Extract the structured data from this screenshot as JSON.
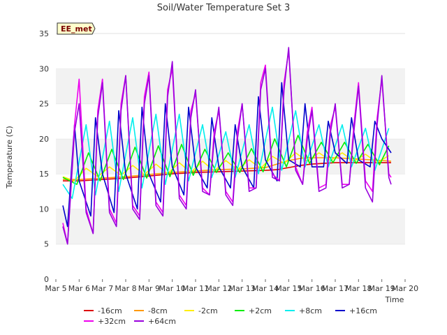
{
  "chart_data": {
    "type": "line",
    "title": "Soil/Water Temperature Set 3",
    "xlabel": "Time",
    "ylabel": "Temperature (C)",
    "badge": "EE_met",
    "xlim": [
      5,
      20
    ],
    "ylim": [
      0,
      35
    ],
    "x_ticks": [
      5,
      6,
      7,
      8,
      9,
      10,
      11,
      12,
      13,
      14,
      15,
      16,
      17,
      18,
      19,
      20
    ],
    "x_tick_labels": [
      "Mar 5",
      "Mar 6",
      "Mar 7",
      "Mar 8",
      "Mar 9",
      "Mar 10",
      "Mar 11",
      "Mar 12",
      "Mar 13",
      "Mar 14",
      "Mar 15",
      "Mar 16",
      "Mar 17",
      "Mar 18",
      "Mar 19",
      "Mar 20"
    ],
    "y_ticks": [
      0,
      5,
      10,
      15,
      20,
      25,
      30,
      35
    ],
    "y_tick_labels": [
      "0",
      "5",
      "10",
      "15",
      "20",
      "25",
      "30",
      "35"
    ],
    "grid": "horizontal bands",
    "legend_position": "bottom",
    "series": [
      {
        "name": "-16cm",
        "color": "#dd0000",
        "x": [
          5.3,
          6.0,
          7.0,
          8.0,
          9.0,
          10.0,
          11.0,
          12.0,
          13.0,
          14.0,
          14.5,
          15.0,
          15.5,
          16.0,
          17.0,
          18.0,
          19.0,
          19.4
        ],
        "y": [
          14.0,
          14.0,
          14.2,
          14.4,
          14.7,
          15.0,
          15.2,
          15.3,
          15.4,
          15.5,
          15.6,
          15.9,
          16.2,
          16.4,
          16.6,
          16.6,
          16.6,
          16.6
        ]
      },
      {
        "name": "-8cm",
        "color": "#ff9900",
        "x": [
          5.3,
          6.0,
          7.0,
          8.0,
          9.0,
          10.0,
          11.0,
          12.0,
          13.0,
          14.0,
          14.6,
          15.0,
          15.5,
          16.0,
          17.0,
          18.0,
          19.0,
          19.4
        ],
        "y": [
          14.2,
          14.2,
          14.4,
          14.6,
          14.9,
          15.2,
          15.4,
          15.6,
          15.7,
          15.9,
          16.5,
          16.9,
          17.2,
          17.3,
          17.3,
          17.1,
          16.9,
          16.8
        ]
      },
      {
        "name": "-2cm",
        "color": "#ffee00",
        "x": [
          5.3,
          5.8,
          6.3,
          6.8,
          7.3,
          7.8,
          8.3,
          8.8,
          9.3,
          9.8,
          10.3,
          10.8,
          11.3,
          11.8,
          12.3,
          12.8,
          13.3,
          13.8,
          14.3,
          14.8,
          15.3,
          15.8,
          16.3,
          16.8,
          17.3,
          17.8,
          18.3,
          18.8,
          19.3
        ],
        "y": [
          14.6,
          14.0,
          15.8,
          14.6,
          16.0,
          14.8,
          16.2,
          14.9,
          16.4,
          15.0,
          16.6,
          15.2,
          16.8,
          15.4,
          16.9,
          15.6,
          17.0,
          15.8,
          17.5,
          16.5,
          18.0,
          16.8,
          18.0,
          16.9,
          18.0,
          16.8,
          17.8,
          16.6,
          17.6
        ]
      },
      {
        "name": "+2cm",
        "color": "#00ee00",
        "x": [
          5.3,
          5.9,
          6.4,
          6.9,
          7.4,
          7.9,
          8.4,
          8.9,
          9.4,
          9.9,
          10.4,
          10.9,
          11.4,
          11.9,
          12.4,
          12.9,
          13.4,
          13.9,
          14.4,
          14.9,
          15.4,
          15.9,
          16.4,
          16.9,
          17.4,
          17.9,
          18.4,
          18.9,
          19.3
        ],
        "y": [
          14.5,
          13.5,
          18.0,
          14.0,
          18.5,
          14.2,
          18.8,
          14.4,
          19.0,
          14.6,
          19.2,
          14.8,
          18.5,
          15.2,
          18.0,
          15.2,
          18.6,
          15.3,
          20.0,
          16.0,
          20.5,
          16.5,
          19.5,
          16.6,
          19.5,
          16.5,
          19.2,
          16.3,
          19.0
        ]
      },
      {
        "name": "+8cm",
        "color": "#00eeee",
        "x": [
          5.3,
          5.7,
          6.3,
          6.7,
          7.3,
          7.7,
          8.3,
          8.7,
          9.3,
          9.7,
          10.3,
          10.7,
          11.3,
          11.7,
          12.3,
          12.7,
          13.3,
          13.7,
          14.3,
          14.7,
          15.3,
          15.7,
          16.3,
          16.7,
          17.3,
          17.7,
          18.3,
          18.7,
          19.3
        ],
        "y": [
          13.5,
          11.5,
          22.0,
          12.0,
          22.5,
          12.5,
          23.0,
          13.0,
          23.5,
          13.5,
          23.5,
          14.0,
          22.0,
          14.5,
          21.0,
          14.5,
          22.0,
          15.0,
          24.5,
          15.5,
          24.0,
          16.0,
          22.0,
          16.0,
          22.0,
          16.0,
          21.5,
          15.5,
          21.5
        ]
      },
      {
        "name": "+16cm",
        "color": "#0000cc",
        "x": [
          5.3,
          5.5,
          5.8,
          6.0,
          6.5,
          6.7,
          7.0,
          7.5,
          7.7,
          8.0,
          8.5,
          8.7,
          9.0,
          9.5,
          9.7,
          10.0,
          10.5,
          10.7,
          11.0,
          11.5,
          11.7,
          12.0,
          12.5,
          12.7,
          13.0,
          13.5,
          13.7,
          14.0,
          14.5,
          14.7,
          15.0,
          15.5,
          15.7,
          16.0,
          16.5,
          16.7,
          17.0,
          17.5,
          17.7,
          18.0,
          18.5,
          18.7,
          19.0,
          19.4
        ],
        "y": [
          10.5,
          7.5,
          22.0,
          14.0,
          9.0,
          23.0,
          15.0,
          9.5,
          24.0,
          15.0,
          10.0,
          24.5,
          15.0,
          11.0,
          25.0,
          16.0,
          12.0,
          24.5,
          16.0,
          13.0,
          23.0,
          16.0,
          13.0,
          22.0,
          16.0,
          13.0,
          26.0,
          17.0,
          14.0,
          28.0,
          17.0,
          16.0,
          25.0,
          16.0,
          16.0,
          22.5,
          18.0,
          16.5,
          23.0,
          17.0,
          16.0,
          22.5,
          20.0,
          18.0
        ]
      },
      {
        "name": "+32cm",
        "color": "#ee00ee",
        "x": [
          5.3,
          5.5,
          5.8,
          6.0,
          6.3,
          6.6,
          6.8,
          7.0,
          7.3,
          7.6,
          7.8,
          8.0,
          8.3,
          8.6,
          8.8,
          9.0,
          9.3,
          9.6,
          9.8,
          10.0,
          10.3,
          10.6,
          10.8,
          11.0,
          11.3,
          11.6,
          11.8,
          12.0,
          12.3,
          12.6,
          12.8,
          13.0,
          13.3,
          13.6,
          13.8,
          14.0,
          14.3,
          14.6,
          14.8,
          15.0,
          15.3,
          15.6,
          15.8,
          16.0,
          16.3,
          16.6,
          16.8,
          17.0,
          17.3,
          17.6,
          17.8,
          18.0,
          18.3,
          18.6,
          18.8,
          19.0,
          19.3,
          19.4
        ],
        "y": [
          8.0,
          5.0,
          22.0,
          28.5,
          10.0,
          6.5,
          24.0,
          28.5,
          10.0,
          8.0,
          25.0,
          29.0,
          10.5,
          9.0,
          26.0,
          29.5,
          11.0,
          9.5,
          27.0,
          30.0,
          12.0,
          10.5,
          24.0,
          26.5,
          13.0,
          12.0,
          21.0,
          24.0,
          12.5,
          11.0,
          21.0,
          25.0,
          13.0,
          13.0,
          28.0,
          30.5,
          15.0,
          14.0,
          28.0,
          32.5,
          16.0,
          13.5,
          21.0,
          24.5,
          13.0,
          13.5,
          22.0,
          24.5,
          13.5,
          13.5,
          22.0,
          28.0,
          14.0,
          12.5,
          23.0,
          28.5,
          15.0,
          14.5
        ]
      },
      {
        "name": "+64cm",
        "color": "#9900dd",
        "x": [
          5.3,
          5.5,
          5.8,
          6.0,
          6.3,
          6.6,
          6.8,
          7.0,
          7.3,
          7.6,
          7.8,
          8.0,
          8.3,
          8.6,
          8.8,
          9.0,
          9.3,
          9.6,
          9.8,
          10.0,
          10.3,
          10.6,
          10.8,
          11.0,
          11.3,
          11.6,
          11.8,
          12.0,
          12.3,
          12.6,
          12.8,
          13.0,
          13.3,
          13.6,
          13.8,
          14.0,
          14.3,
          14.6,
          14.8,
          15.0,
          15.3,
          15.6,
          15.8,
          16.0,
          16.3,
          16.6,
          16.8,
          17.0,
          17.3,
          17.6,
          17.8,
          18.0,
          18.3,
          18.6,
          18.8,
          19.0,
          19.3,
          19.4
        ],
        "y": [
          7.5,
          5.0,
          21.0,
          25.0,
          9.5,
          6.5,
          23.0,
          28.0,
          9.5,
          7.5,
          24.0,
          29.0,
          10.0,
          8.5,
          25.0,
          29.0,
          10.5,
          9.0,
          26.0,
          31.0,
          11.5,
          10.0,
          23.0,
          27.0,
          12.5,
          12.0,
          20.0,
          24.5,
          12.0,
          10.5,
          20.0,
          25.0,
          12.5,
          13.0,
          27.0,
          30.0,
          14.5,
          14.0,
          27.0,
          33.0,
          15.5,
          13.5,
          20.0,
          24.0,
          12.5,
          13.0,
          21.0,
          25.0,
          13.0,
          13.5,
          21.0,
          27.5,
          13.0,
          11.0,
          22.0,
          29.0,
          14.5,
          13.5
        ]
      }
    ]
  }
}
